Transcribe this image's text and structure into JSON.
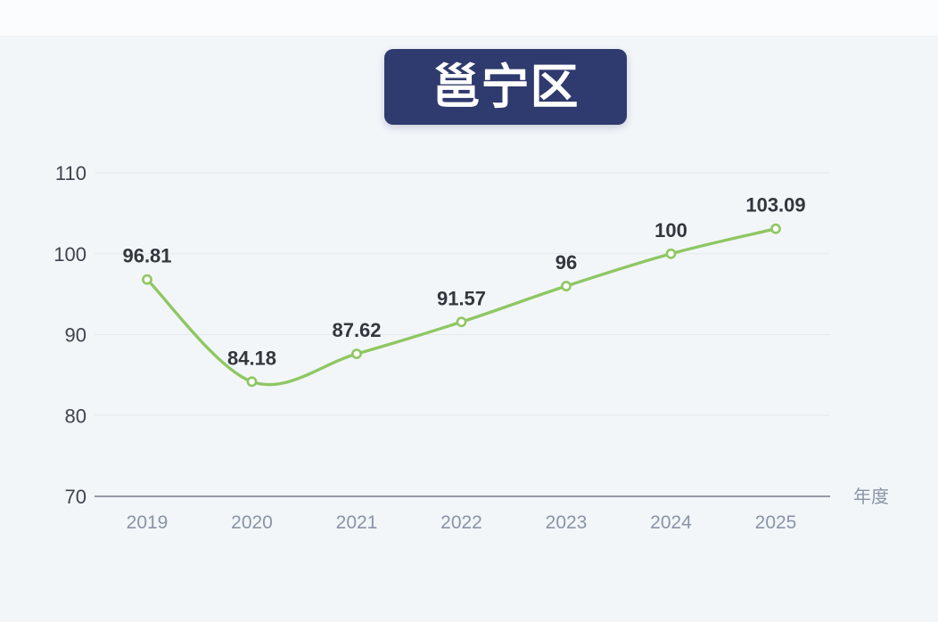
{
  "page": {
    "background": "#f3f6f9",
    "top_strip_color": "#fafcfe"
  },
  "header": {
    "title": "邕宁区",
    "badge_color": "#2f3a6e",
    "title_color": "#ffffff"
  },
  "chart_data": {
    "type": "line",
    "title": "邕宁区",
    "categories": [
      "2019",
      "2020",
      "2021",
      "2022",
      "2023",
      "2024",
      "2025"
    ],
    "values": [
      96.81,
      84.18,
      87.62,
      91.57,
      96,
      100,
      103.09
    ],
    "point_labels": [
      "96.81",
      "84.18",
      "87.62",
      "91.57",
      "96",
      "100",
      "103.09"
    ],
    "xlabel": "年度",
    "ylabel": "",
    "ylim": [
      70,
      110
    ],
    "yticks": [
      70,
      80,
      90,
      100,
      110
    ],
    "grid": true,
    "smooth": true,
    "legend": "none",
    "colors": {
      "line": "#8fc763",
      "marker_fill": "#fdfefd",
      "marker_stroke": "#8fc763",
      "grid_line": "#e4e9ee",
      "axis_line": "#949aa4",
      "ytick_label": "#3e444f",
      "xtick_label": "#8a93a6",
      "point_label": "#33373d",
      "xlabel_color": "#8a93a6"
    }
  }
}
